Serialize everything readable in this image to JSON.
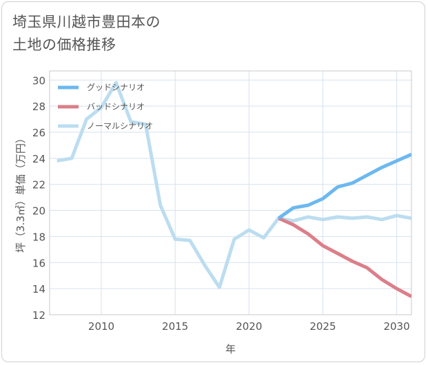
{
  "title_lines": [
    "埼玉県川越市豊田本の",
    "土地の価格推移"
  ],
  "colors": {
    "good": "#6cb8ef",
    "bad": "#db7f8a",
    "normal": "#bcddf0"
  },
  "chart_data": {
    "type": "line",
    "title": "埼玉県川越市豊田本の土地の価格推移",
    "xlabel": "年",
    "ylabel": "坪（3.3㎡）単価（万円）",
    "xlim": [
      2006.5,
      2031
    ],
    "ylim": [
      12,
      30.7
    ],
    "x_ticks": [
      2010,
      2015,
      2020,
      2025,
      2030
    ],
    "y_ticks": [
      12,
      14,
      16,
      18,
      20,
      22,
      24,
      26,
      28,
      30
    ],
    "grid": true,
    "legend_position": "top-left",
    "series": [
      {
        "name": "グッドシナリオ",
        "color_key": "good",
        "x": [
          2022,
          2023,
          2024,
          2025,
          2026,
          2027,
          2028,
          2029,
          2030,
          2031
        ],
        "values": [
          19.4,
          20.2,
          20.4,
          20.9,
          21.8,
          22.1,
          22.7,
          23.3,
          23.8,
          24.3
        ]
      },
      {
        "name": "バッドシナリオ",
        "color_key": "bad",
        "x": [
          2022,
          2023,
          2024,
          2025,
          2026,
          2027,
          2028,
          2029,
          2030,
          2031
        ],
        "values": [
          19.4,
          18.9,
          18.2,
          17.3,
          16.7,
          16.1,
          15.6,
          14.7,
          14.0,
          13.4
        ]
      },
      {
        "name": "ノーマルシナリオ",
        "color_key": "normal",
        "x": [
          2007,
          2008,
          2009,
          2010,
          2011,
          2012,
          2013,
          2014,
          2015,
          2016,
          2017,
          2018,
          2019,
          2020,
          2021,
          2022,
          2023,
          2024,
          2025,
          2026,
          2027,
          2028,
          2029,
          2030,
          2031
        ],
        "values": [
          23.8,
          24.0,
          27.0,
          27.9,
          29.8,
          26.8,
          26.6,
          20.4,
          17.8,
          17.7,
          15.8,
          14.1,
          17.8,
          18.5,
          17.9,
          19.4,
          19.2,
          19.5,
          19.3,
          19.5,
          19.4,
          19.5,
          19.3,
          19.6,
          19.4
        ]
      }
    ]
  }
}
